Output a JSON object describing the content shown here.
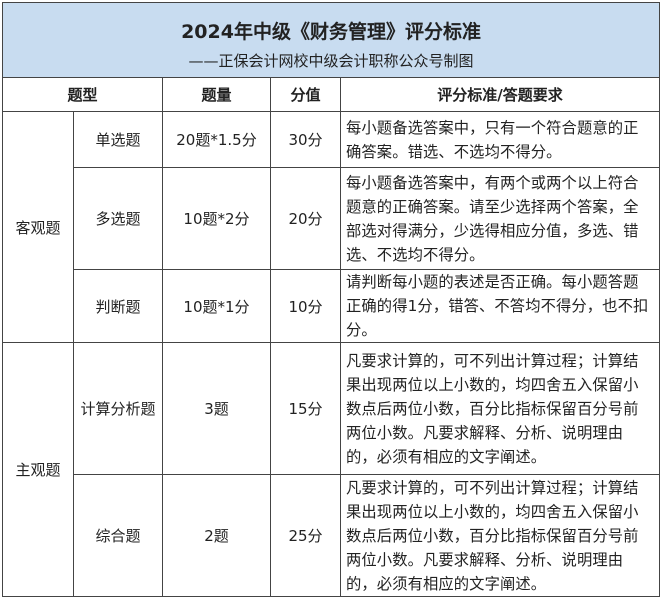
{
  "title": "2024年中级《财务管理》评分标准",
  "subtitle": "——正保会计网校中级会计职称公众号制图",
  "headers": {
    "type": "题型",
    "quantity": "题量",
    "score": "分值",
    "criteria": "评分标准/答题要求"
  },
  "groups": {
    "objective": "客观题",
    "subjective": "主观题"
  },
  "rows": [
    {
      "type": "单选题",
      "quantity": "20题*1.5分",
      "score": "30分",
      "criteria": "每小题备选答案中，只有一个符合题意的正确答案。错选、不选均不得分。"
    },
    {
      "type": "多选题",
      "quantity": "10题*2分",
      "score": "20分",
      "criteria": "每小题备选答案中，有两个或两个以上符合题意的正确答案。请至少选择两个答案，全部选对得满分，少选得相应分值，多选、错选、不选均不得分。"
    },
    {
      "type": "判断题",
      "quantity": "10题*1分",
      "score": "10分",
      "criteria": "请判断每小题的表述是否正确。每小题答题正确的得1分，错答、不答均不得分，也不扣分。"
    },
    {
      "type": "计算分析题",
      "quantity": "3题",
      "score": "15分",
      "criteria": "凡要求计算的，可不列出计算过程；计算结果出现两位以上小数的，均四舍五入保留小数点后两位小数，百分比指标保留百分号前两位小数。凡要求解释、分析、说明理由的，必须有相应的文字阐述。"
    },
    {
      "type": "综合题",
      "quantity": "2题",
      "score": "25分",
      "criteria": "凡要求计算的，可不列出计算过程；计算结果出现两位以上小数的，均四舍五入保留小数点后两位小数，百分比指标保留百分号前两位小数。凡要求解释、分析、说明理由的，必须有相应的文字阐述。"
    }
  ],
  "colors": {
    "header_bg": "#c8dcf0",
    "border": "#444444"
  }
}
